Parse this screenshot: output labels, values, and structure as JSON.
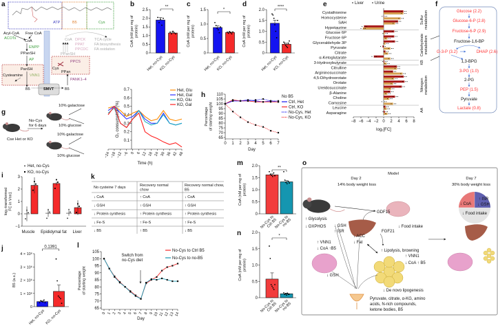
{
  "panel_labels": [
    "a",
    "b",
    "c",
    "d",
    "e",
    "f",
    "g",
    "h",
    "i",
    "j",
    "k",
    "l",
    "m",
    "n",
    "o"
  ],
  "panel_a": {
    "texts": [
      "ATP",
      "B5",
      "Cys",
      "Acyl-CoA",
      "Free CoA",
      "ACOTs",
      "CoA",
      "ENPP",
      "PPanSH",
      "AP",
      "PanSH",
      "Cysteamine",
      "VNN1",
      "B5",
      "SMVT",
      "B5",
      "PANK1–4",
      "PPCS",
      "Cys",
      "PPan",
      "CoA",
      "DPCK",
      "PPAT",
      "PPCDC",
      "PPanSH",
      "TCA cycle",
      "FA biosynthesis",
      "FA oxidation"
    ]
  },
  "panel_f": {
    "steps": [
      {
        "label": "Glucose (2.2)",
        "color": "#ff3030"
      },
      {
        "label": "Glucose-6-P (2.8)",
        "color": "#ff3030"
      },
      {
        "label": "Fructose-6-P (2.9)",
        "color": "#ff3030"
      },
      {
        "label": "Fructose-1,6-BP",
        "color": "#111111"
      },
      {
        "label": "G-3-P (3.2)",
        "color": "#ff3030"
      },
      {
        "label": "DHAP (2.6)",
        "color": "#ff3030"
      },
      {
        "label": "1,3-BPG",
        "color": "#111111"
      },
      {
        "label": "3-PG (1.0)",
        "color": "#ff3030"
      },
      {
        "label": "2-PG",
        "color": "#111111"
      },
      {
        "label": "PEP (1.5)",
        "color": "#ff3030"
      },
      {
        "label": "Pyruvate",
        "color": "#111111"
      },
      {
        "label": "Lactate (0.8)",
        "color": "#ff3030"
      }
    ]
  },
  "panel_g": {
    "texts": [
      "10% galactose",
      "No-Cys",
      "for 6 days",
      "10% glucose",
      "10% galactose",
      "10% glucose",
      "Cse Het or KO"
    ]
  },
  "panel_k": {
    "header_lines": [
      [
        "No cysteine 7 days"
      ],
      [
        "Recovery normal",
        "chow"
      ],
      [
        "Recovery normal chow,",
        "B5"
      ]
    ],
    "rows": [
      [
        "↓ CoA",
        "↑ CoA",
        "↓ CoA"
      ],
      [
        "↓ GSH",
        "↑ GSH",
        "↑ GSH"
      ],
      [
        "↓ Protein synthesis",
        "↑ Protein synthesis",
        "↑ Protein synthesis"
      ],
      [
        "↓ Fe-S",
        "↑ Fe-S",
        "↑ Fe-S"
      ],
      [
        "↓ B5",
        "↑ B5",
        "↓ B5"
      ]
    ]
  },
  "panel_o": {
    "texts": [
      "Model",
      "Day 2",
      "14% body weight loss",
      "Day 7",
      "30% body weight loss",
      "↓ CoA",
      "↑ ISR",
      "↓ GSH",
      "↓ Food intake",
      "GDF15",
      "↓ Food intake",
      "FGF21",
      "↑ Glycolysis",
      "↓ OXPHOS",
      "↓ GSH",
      "↑ ISR",
      "↓ ACC",
      "↓ Fat",
      "↑ Lipolysis, browning",
      "↑ VNN1",
      "↓ CoA ↑ B5",
      "↑ VNN1",
      "↓ CoA ↑B5",
      "↓ GSH",
      "↓ De novo lipogenesis",
      "Pyruvate, citrate, α-KG, amino",
      "acids, N-rich compounds,",
      "ketone bodies, B5"
    ],
    "colors": {
      "pie_coa": "#e87878",
      "pie_isr": "#6060b0",
      "pie_food": "#e4e4e4"
    }
  },
  "chart_data": [
    {
      "id": "b",
      "type": "bar",
      "categories": [
        "Het, no-Cys",
        "KO, no-Cys"
      ],
      "values": [
        1.9,
        1.15
      ],
      "errors": [
        0.15,
        0.06
      ],
      "points": [
        [
          2.05,
          1.75,
          1.95,
          1.6,
          2.0
        ],
        [
          1.2,
          1.1,
          1.25,
          1.15,
          1.1
        ]
      ],
      "ylabel_lines": [
        "CoA (nM per mg of",
        "protein)"
      ],
      "ylim": [
        0,
        2.5
      ],
      "yticks": [
        "0",
        "0.5",
        "1.0",
        "1.5",
        "2.0",
        "2.5"
      ],
      "significance": "**",
      "colors": [
        "#1414f0",
        "#f52a2a"
      ]
    },
    {
      "id": "c",
      "type": "bar",
      "categories": [
        "Het, no-Cys",
        "KO, no-Cys"
      ],
      "values": [
        0.88,
        0.71
      ],
      "errors": [
        0.06,
        0.02
      ],
      "points": [
        [
          1.05,
          0.95,
          0.85,
          0.8,
          0.7,
          0.9
        ],
        [
          0.72,
          0.68,
          0.74,
          0.7,
          0.66,
          0.73
        ]
      ],
      "ylabel_lines": [
        "CoA (nM per mg of",
        "protein)"
      ],
      "ylim": [
        0,
        1.5
      ],
      "yticks": [
        "0",
        "0.5",
        "1.0",
        "1.5"
      ],
      "significance": "*",
      "colors": [
        "#1414f0",
        "#f52a2a"
      ]
    },
    {
      "id": "d",
      "type": "bar",
      "categories": [
        "Het, no-Cys",
        "KO, no-Cys"
      ],
      "values": [
        1.37,
        0.4
      ],
      "errors": [
        0.14,
        0.05
      ],
      "points": [
        [
          1.8,
          1.75,
          1.6,
          1.3,
          1.0,
          0.7,
          1.5
        ],
        [
          0.5,
          0.45,
          0.35,
          0.3,
          0.25,
          0.45,
          0.55
        ]
      ],
      "ylabel_lines": [
        "CoA (nM per mg of",
        "protein)"
      ],
      "ylim": [
        0,
        2.0
      ],
      "yticks": [
        "0",
        "0.5",
        "1.0",
        "1.5",
        "2.0"
      ],
      "significance": "****",
      "colors": [
        "#1414f0",
        "#f52a2a"
      ]
    },
    {
      "id": "e",
      "type": "bar",
      "orientation": "horizontal",
      "categories": [
        "Cystathionine",
        "Homocysteine",
        "SAH",
        "Hypotaurine",
        "Glucose 6P",
        "Fructose 6P",
        "Glyceraldehyde 3P",
        "Pyruvate",
        "Citrate",
        "α-Ketoglutarate",
        "3-Hydroxybutyrate",
        "Citrulline",
        "Argininosuccinate",
        "4,5-Dihydroorotate",
        "Orotate",
        "Ureidosuccinate",
        "β-Alanine",
        "Choline",
        "Carnosine",
        "Leucine",
        "Asparagine"
      ],
      "series": [
        {
          "name": "Liver",
          "values": [
            5.2,
            0.1,
            3.8,
            -5.2,
            2.8,
            2.8,
            3.0,
            -0.3,
            0.5,
            -2.6,
            0.2,
            3.5,
            2.5,
            5.3,
            5.5,
            4.8,
            1.8,
            3.0,
            0,
            0.5,
            0.3
          ]
        },
        {
          "name": "Urine",
          "values": [
            5.2,
            4.5,
            3.0,
            -5.5,
            0.3,
            1.0,
            0.5,
            1.8,
            1.2,
            1.8,
            0.8,
            3.5,
            5.0,
            2.8,
            2.5,
            2.0,
            1.0,
            1.5,
            2.5,
            0.8,
            1.0
          ]
        }
      ],
      "xlabel": "log₂[FC]",
      "xlim": [
        -8,
        8
      ],
      "xticks": [
        "−8",
        "−6",
        "−4",
        "−2",
        "0",
        "2",
        "4",
        "6",
        "8"
      ],
      "groups": [
        {
          "name": "Sulfur",
          "sub": "metabolism"
        },
        {
          "name": "Carbohydrate",
          "sub": "metabolism"
        },
        {
          "name": "KB"
        },
        {
          "name": "Nitrogen",
          "sub": "metabolism"
        },
        {
          "name": "AA"
        }
      ],
      "legend_position": "top",
      "colors": [
        "#a81818",
        "#d4a050"
      ]
    },
    {
      "id": "g",
      "type": "line",
      "x": [
        -24,
        -18,
        -12,
        -6,
        0,
        6,
        12,
        18,
        24,
        30,
        36,
        42,
        48
      ],
      "xticks": [
        "−24",
        "−18",
        "−12",
        "−6",
        "0",
        "6",
        "12",
        "18",
        "24",
        "30",
        "36",
        "42",
        "48"
      ],
      "series": [
        {
          "name": "Het, Glu",
          "color": "#ff8c00",
          "values": [
            0.48,
            0.5,
            0.45,
            0.38,
            0.42,
            0.45,
            0.38,
            0.33,
            0.35,
            0.45,
            0.35,
            0.33,
            0.35
          ]
        },
        {
          "name": "Het, Gal",
          "color": "#3030ff",
          "values": [
            0.45,
            0.5,
            0.42,
            0.35,
            0.38,
            0.45,
            0.35,
            0.3,
            0.3,
            0.42,
            0.3,
            0.28,
            0.3
          ]
        },
        {
          "name": "KO, Glu",
          "color": "#20b0c0",
          "values": [
            0.42,
            0.48,
            0.3,
            0.25,
            0.35,
            0.45,
            0.32,
            0.28,
            0.3,
            0.4,
            0.3,
            0.28,
            0.3
          ]
        },
        {
          "name": "KO, Gal",
          "color": "#ff2020",
          "values": [
            0.4,
            0.5,
            0.3,
            0.25,
            0.35,
            0.42,
            0.2,
            0.15,
            0.12,
            0.08,
            0.05,
            0.07,
            0.02
          ]
        }
      ],
      "xlabel": "Time (h)",
      "ylabel": "O₂ consumption (%)",
      "ylim": [
        0,
        0.7
      ],
      "yticks": [
        "0.1",
        "0.2",
        "0.3",
        "0.4",
        "0.5",
        "0.6",
        "0.7"
      ],
      "legend_position": "top-right"
    },
    {
      "id": "h",
      "type": "line",
      "x": [
        0,
        1,
        2,
        3,
        4,
        5,
        6,
        7
      ],
      "xticks": [
        "0",
        "1",
        "2",
        "3",
        "4",
        "5",
        "6",
        "7"
      ],
      "series": [
        {
          "name": "Ctrl, Het",
          "color": "#1414f0",
          "style": "solid",
          "values": [
            100,
            103,
            103,
            104,
            103,
            102,
            103,
            102
          ]
        },
        {
          "name": "Ctrl, KO",
          "color": "#f52a2a",
          "style": "solid",
          "values": [
            100,
            104,
            103,
            103,
            102,
            102,
            102,
            102
          ]
        },
        {
          "name": "No-Cys, Het",
          "color": "#1414f0",
          "style": "dotted",
          "values": [
            100,
            103,
            103,
            103,
            104,
            105,
            103,
            103
          ]
        },
        {
          "name": "No-Cys, KO",
          "color": "#f52a2a",
          "style": "dotted",
          "values": [
            100,
            92,
            86,
            81,
            78,
            76,
            72,
            70
          ]
        }
      ],
      "legend_title": "No B5",
      "xlabel": "Day",
      "ylabel_lines": [
        "Percentage",
        "of starting weight"
      ],
      "ylim": [
        65,
        110
      ],
      "yticks": [
        "65",
        "70",
        "75",
        "80",
        "85",
        "90",
        "95",
        "100",
        "105",
        "110"
      ],
      "legend_position": "right"
    },
    {
      "id": "i",
      "type": "bar",
      "categories": [
        "Muscle",
        "Epididymal fat",
        "Liver"
      ],
      "series": [
        {
          "name": "Het, no-Cys",
          "values": [
            0,
            0.05,
            0.05
          ],
          "errors": [
            0.6,
            0.3,
            0.2
          ],
          "color": "#ffffff"
        },
        {
          "name": "KO, no-Cys",
          "values": [
            2.3,
            2.45,
            0.5
          ],
          "errors": [
            0.65,
            0.15,
            0.6
          ],
          "color": "#f52a2a"
        }
      ],
      "ylabel_lines": [
        "log₂-transformed",
        "FC in Vnn1"
      ],
      "ylim": [
        -1,
        3
      ],
      "yticks": [
        "−1",
        "0",
        "1",
        "2",
        "3"
      ],
      "legend_position": "top"
    },
    {
      "id": "j",
      "type": "bar",
      "categories": [
        "Het, no-Cys",
        "KO, no-Cys"
      ],
      "values": [
        0.38,
        1.15
      ],
      "errors": [
        0.05,
        0.48
      ],
      "points": [
        [
          0.3,
          0.45,
          0.4,
          0.35,
          0.5,
          0.3
        ],
        [
          3.6,
          1.95,
          0.8,
          0.7,
          0.6,
          0.25
        ]
      ],
      "ylabel_lines": [
        "B5 (a.u.)"
      ],
      "ylim": [
        0,
        4
      ],
      "yticks": [
        "0",
        "1 × 10⁶",
        "2 × 10⁶",
        "3 × 10⁶",
        "4 × 10⁶"
      ],
      "significance": "0.1391",
      "colors": [
        "#1414f0",
        "#f52a2a"
      ]
    },
    {
      "id": "l",
      "type": "line",
      "x": [
        0,
        1,
        2,
        3,
        4,
        5,
        6,
        7,
        8,
        9,
        10,
        11,
        12,
        13,
        14
      ],
      "xticks": [
        "0",
        "1",
        "2",
        "3",
        "4",
        "5",
        "6",
        "7",
        "8",
        "9",
        "10",
        "11",
        "12",
        "13",
        "14"
      ],
      "series": [
        {
          "name": "No-Cys to Ctrl B5",
          "color": "#f52a2a",
          "values": [
            100,
            93,
            87.5,
            83.5,
            80,
            77,
            74,
            71.5,
            82.5,
            85,
            87,
            91.5,
            94,
            95,
            96.5
          ]
        },
        {
          "name": "No-Cys to no-B5",
          "color": "#1596b0",
          "values": [
            100,
            93,
            87,
            83,
            80,
            76.5,
            73.5,
            71.5,
            83,
            85.5,
            85,
            86,
            85,
            84,
            84
          ]
        }
      ],
      "annotation": [
        "Switch from",
        "no-Cys diet"
      ],
      "xlabel": "Day",
      "ylabel_lines": [
        "Percentage",
        "of starting weight"
      ],
      "ylim": [
        65,
        105
      ],
      "yticks": [
        "65",
        "70",
        "75",
        "80",
        "85",
        "90",
        "95",
        "100",
        "105"
      ],
      "legend_position": "top-right"
    },
    {
      "id": "m",
      "type": "bar",
      "categories": [
        "No-Cys to Ctrl B5",
        "No-Cys to no-B5"
      ],
      "values": [
        1.62,
        1.33
      ],
      "errors": [
        0.04,
        0.05
      ],
      "points": [
        [
          1.75,
          1.65,
          1.6,
          1.55,
          1.7,
          1.58
        ],
        [
          1.75,
          1.4,
          1.3,
          1.25,
          1.35,
          1.28
        ]
      ],
      "ylabel_lines": [
        "CoA (nM per mg of",
        "protein)"
      ],
      "ylim": [
        0,
        2.0
      ],
      "yticks": [
        "0",
        "0.5",
        "1.0",
        "1.5",
        "2.0"
      ],
      "significance": "**",
      "colors": [
        "#f23c3c",
        "#1596b0"
      ]
    },
    {
      "id": "n",
      "type": "bar",
      "categories": [
        "No-Cys to Ctrl B5",
        "No-Cys to no-B5"
      ],
      "values": [
        0.57,
        0.12
      ],
      "errors": [
        0.19,
        0.02
      ],
      "points": [
        [
          1.58,
          1.2,
          0.4,
          0.35,
          0.3,
          0.25,
          0.4
        ],
        [
          0.15,
          0.1,
          0.12,
          0.08,
          0.14,
          0.1,
          0.11
        ]
      ],
      "ylabel_lines": [
        "CoA (nM per mg of",
        "protein)"
      ],
      "ylim": [
        0,
        2.0
      ],
      "yticks": [
        "0",
        "0.5",
        "1.0",
        "1.5",
        "2.0"
      ],
      "significance": "*",
      "colors": [
        "#f23c3c",
        "#1596b0"
      ]
    }
  ]
}
